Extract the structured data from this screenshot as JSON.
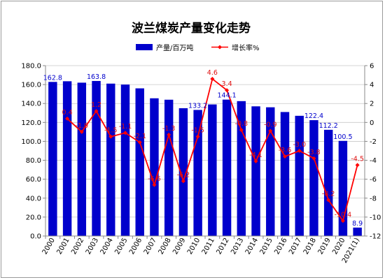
{
  "chart_data": {
    "type": "bar",
    "title": "波兰煤炭产量变化走势",
    "categories": [
      "2000",
      "2001",
      "2002",
      "2003",
      "2004",
      "2005",
      "2006",
      "2007",
      "2008",
      "2009",
      "2010",
      "2011",
      "2012",
      "2013",
      "2014",
      "2015",
      "2016",
      "2017",
      "2018",
      "2019",
      "2020",
      "2021(1)"
    ],
    "series": [
      {
        "name": "产量/百万吨",
        "type": "bar",
        "axis": "left",
        "color": "#0000cc",
        "values": [
          162.8,
          163.5,
          162.0,
          163.8,
          161.0,
          160.0,
          156.0,
          145.5,
          144.0,
          135.0,
          133.2,
          139.0,
          144.1,
          142.5,
          137.0,
          136.0,
          131.0,
          127.0,
          122.4,
          112.2,
          100.5,
          8.9
        ]
      },
      {
        "name": "增长率%",
        "type": "line",
        "axis": "right",
        "color": "#ff0000",
        "values": [
          null,
          0.4,
          -1.0,
          1.2,
          -1.5,
          -1.1,
          -2.1,
          -6.6,
          -1.3,
          -6.2,
          -1.5,
          4.6,
          3.4,
          -0.8,
          -4.1,
          -0.9,
          -3.6,
          -3.0,
          -3.8,
          -8.2,
          -10.4,
          -4.5
        ]
      }
    ],
    "bar_labels": [
      {
        "index": 0,
        "text": "162.8"
      },
      {
        "index": 3,
        "text": "163.8"
      },
      {
        "index": 10,
        "text": "133.2"
      },
      {
        "index": 12,
        "text": "144.1"
      },
      {
        "index": 18,
        "text": "122.4"
      },
      {
        "index": 19,
        "text": "112.2"
      },
      {
        "index": 20,
        "text": "100.5"
      },
      {
        "index": 21,
        "text": "8.9"
      }
    ],
    "line_labels": [
      {
        "index": 1,
        "text": "0.4"
      },
      {
        "index": 2,
        "text": "-1.0"
      },
      {
        "index": 3,
        "text": "1.2"
      },
      {
        "index": 4,
        "text": "-1.5"
      },
      {
        "index": 5,
        "text": "-1.1"
      },
      {
        "index": 6,
        "text": "-2.1"
      },
      {
        "index": 7,
        "text": "-6.6"
      },
      {
        "index": 8,
        "text": "-1.3"
      },
      {
        "index": 9,
        "text": "-6.2"
      },
      {
        "index": 10,
        "text": "-1.5"
      },
      {
        "index": 11,
        "text": "4.6"
      },
      {
        "index": 12,
        "text": "3.4"
      },
      {
        "index": 13,
        "text": "-0.8"
      },
      {
        "index": 14,
        "text": "-4.1"
      },
      {
        "index": 15,
        "text": "-0.9"
      },
      {
        "index": 16,
        "text": "-3.6"
      },
      {
        "index": 17,
        "text": "-3.0"
      },
      {
        "index": 18,
        "text": "-3.8"
      },
      {
        "index": 19,
        "text": "-8.2"
      },
      {
        "index": 20,
        "text": "-10.4"
      },
      {
        "index": 21,
        "text": "-4.5"
      }
    ],
    "ylim_left": [
      0,
      180
    ],
    "ylim_right": [
      -12,
      6
    ],
    "yticks_left": [
      "0.0",
      "20.0",
      "40.0",
      "60.0",
      "80.0",
      "100.0",
      "120.0",
      "140.0",
      "160.0",
      "180.0"
    ],
    "yticks_right": [
      "-12",
      "-10",
      "-8",
      "-6",
      "-4",
      "-2",
      "0",
      "2",
      "4",
      "6"
    ],
    "grid": "horizontal",
    "legend_position": "top"
  }
}
